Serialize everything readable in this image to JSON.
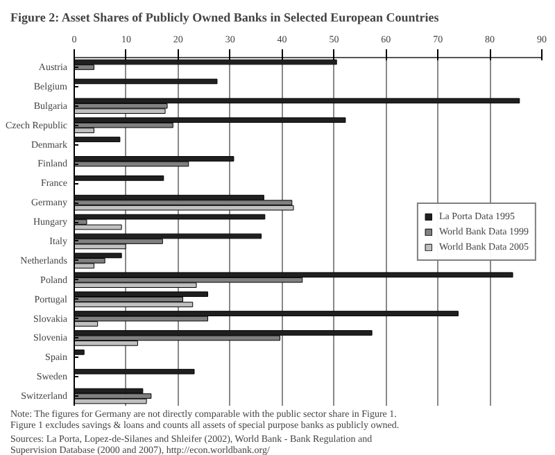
{
  "chart_data": {
    "type": "bar",
    "orientation": "horizontal",
    "title": "Figure 2: Asset Shares of Publicly Owned Banks in Selected European Countries",
    "categories": [
      "Austria",
      "Belgium",
      "Bulgaria",
      "Czech Republic",
      "Denmark",
      "Finland",
      "France",
      "Germany",
      "Hungary",
      "Italy",
      "Netherlands",
      "Poland",
      "Portugal",
      "Slovakia",
      "Slovenia",
      "Spain",
      "Sweden",
      "Switzerland"
    ],
    "series": [
      {
        "name": "La Porta Data 1995",
        "color": "#202020",
        "values": [
          50.5,
          27.5,
          85.7,
          52.2,
          8.8,
          30.7,
          17.2,
          36.5,
          36.7,
          36.0,
          9.1,
          84.4,
          25.7,
          73.9,
          57.3,
          1.9,
          23.1,
          13.2
        ]
      },
      {
        "name": "World Bank Data 1999",
        "color": "#808080",
        "values": [
          3.8,
          null,
          17.9,
          19.0,
          null,
          22.0,
          null,
          41.9,
          2.4,
          17.0,
          5.9,
          43.9,
          20.9,
          25.7,
          39.6,
          null,
          null,
          14.8
        ]
      },
      {
        "name": "World Bank Data 2005",
        "color": "#c0c0c0",
        "values": [
          null,
          null,
          17.5,
          3.8,
          null,
          null,
          null,
          42.2,
          9.1,
          9.9,
          3.8,
          23.5,
          22.8,
          4.5,
          12.2,
          null,
          null,
          13.9
        ]
      }
    ],
    "xlim": [
      0,
      90
    ],
    "xticks": [
      0,
      10,
      20,
      30,
      40,
      50,
      60,
      70,
      80,
      90
    ],
    "grid": "x",
    "legend": "right",
    "annotations": [
      "Note: The figures for Germany are not directly comparable with the public sector share in Figure 1. Figure 1 excludes savings & loans and counts all assets of special purpose banks as publicly owned.",
      "Sources: La Porta, Lopez-de-Silanes and Shleifer (2002), World Bank - Bank Regulation and Supervision Database (2000 and 2007), http://econ.worldbank.org/"
    ]
  }
}
